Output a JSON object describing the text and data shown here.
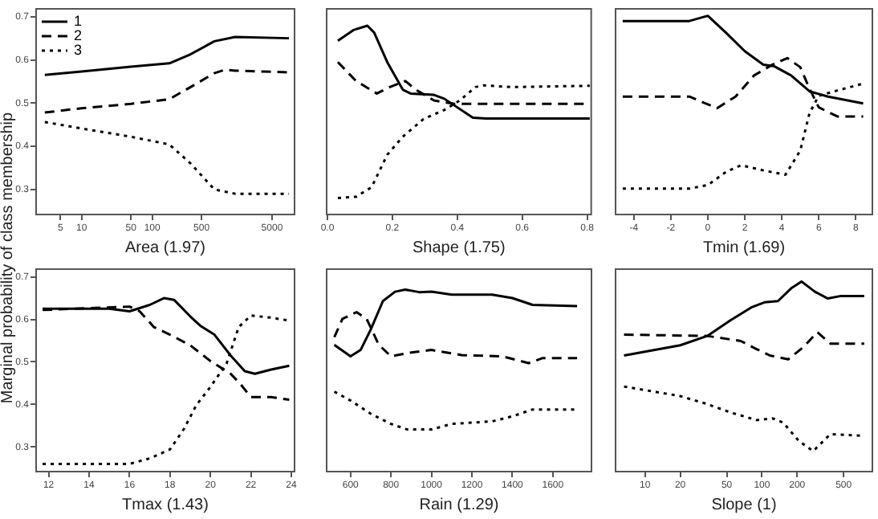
{
  "chart_data": [
    {
      "type": "line",
      "xlabel": "Area (1.97)",
      "ylabel": "Marginal probability of class membership",
      "log": "x",
      "xlim": [
        2.2,
        10700
      ],
      "xticks": [
        5,
        10,
        50,
        100,
        500,
        5000
      ],
      "ylim": [
        0.24,
        0.72
      ],
      "yticks": [
        0.3,
        0.4,
        0.5,
        0.6,
        0.7
      ],
      "legend": "top left",
      "marker": "none",
      "grid": false,
      "series": [
        {
          "name": "1",
          "color": "#000000",
          "line_style": "solid",
          "x": [
            3,
            10,
            50,
            175,
            350,
            760,
            1500,
            8700
          ],
          "values": [
            0.565,
            0.573,
            0.584,
            0.592,
            0.613,
            0.643,
            0.653,
            0.65
          ]
        },
        {
          "name": "2",
          "color": "#000000",
          "line_style": "dashed",
          "x": [
            3,
            10,
            50,
            175,
            350,
            760,
            1070,
            1500,
            8700
          ],
          "values": [
            0.478,
            0.488,
            0.498,
            0.509,
            0.537,
            0.569,
            0.577,
            0.575,
            0.571
          ]
        },
        {
          "name": "3",
          "color": "#000000",
          "line_style": "dotted",
          "x": [
            3,
            10,
            50,
            175,
            350,
            760,
            1500,
            8700
          ],
          "values": [
            0.456,
            0.441,
            0.422,
            0.404,
            0.36,
            0.3,
            0.29,
            0.29
          ]
        }
      ]
    },
    {
      "type": "line",
      "xlabel": "Shape (1.75)",
      "xlim": [
        -0.005,
        0.815
      ],
      "xticks": [
        {
          "value": 0,
          "label": "0.0"
        },
        0.2,
        0.4,
        0.6,
        0.8
      ],
      "ylim": [
        0.24,
        0.72
      ],
      "tick_labels": "x",
      "marker": "none",
      "grid": false,
      "series": [
        {
          "color": "#000000",
          "line_style": "solid",
          "x": [
            0.032,
            0.08,
            0.123,
            0.144,
            0.184,
            0.232,
            0.256,
            0.328,
            0.36,
            0.4,
            0.448,
            0.488,
            0.808
          ],
          "values": [
            0.644,
            0.669,
            0.679,
            0.663,
            0.595,
            0.531,
            0.522,
            0.519,
            0.51,
            0.49,
            0.466,
            0.464,
            0.464
          ]
        },
        {
          "color": "#000000",
          "line_style": "dashed",
          "x": [
            0.032,
            0.088,
            0.152,
            0.192,
            0.24,
            0.272,
            0.328,
            0.392,
            0.808
          ],
          "values": [
            0.595,
            0.551,
            0.522,
            0.537,
            0.551,
            0.531,
            0.506,
            0.498,
            0.498
          ]
        },
        {
          "color": "#000000",
          "line_style": "dotted",
          "x": [
            0.032,
            0.088,
            0.136,
            0.184,
            0.232,
            0.296,
            0.36,
            0.408,
            0.456,
            0.48,
            0.568,
            0.808
          ],
          "values": [
            0.28,
            0.283,
            0.305,
            0.38,
            0.422,
            0.463,
            0.484,
            0.506,
            0.537,
            0.541,
            0.537,
            0.54
          ]
        }
      ]
    },
    {
      "type": "line",
      "xlabel": "Tmin (1.69)",
      "xlim": [
        -5.03,
        8.94
      ],
      "xticks": [
        -4,
        -2,
        0,
        2,
        4,
        6,
        8
      ],
      "ylim": [
        0.24,
        0.72
      ],
      "tick_labels": "x",
      "marker": "none",
      "grid": false,
      "series": [
        {
          "color": "#000000",
          "line_style": "solid",
          "x": [
            -4.6,
            -1,
            0,
            1,
            2,
            3,
            3.6,
            4.5,
            5.5,
            6.5,
            8.4
          ],
          "values": [
            0.69,
            0.69,
            0.702,
            0.662,
            0.62,
            0.589,
            0.585,
            0.564,
            0.527,
            0.515,
            0.499
          ]
        },
        {
          "color": "#000000",
          "line_style": "dashed",
          "x": [
            -4.6,
            -1,
            0,
            0.5,
            1.5,
            2.5,
            3.5,
            4.3,
            5,
            5.5,
            6,
            7,
            8.4
          ],
          "values": [
            0.515,
            0.515,
            0.497,
            0.488,
            0.515,
            0.564,
            0.589,
            0.604,
            0.583,
            0.533,
            0.49,
            0.469,
            0.469
          ]
        },
        {
          "color": "#000000",
          "line_style": "dotted",
          "x": [
            -4.6,
            -1,
            0,
            1,
            1.8,
            3,
            4.2,
            5,
            5.5,
            6,
            7,
            8.4
          ],
          "values": [
            0.302,
            0.302,
            0.31,
            0.341,
            0.356,
            0.344,
            0.334,
            0.39,
            0.477,
            0.517,
            0.529,
            0.545
          ]
        }
      ]
    },
    {
      "type": "line",
      "xlabel": "Tmax (1.43)",
      "xlim": [
        11.34,
        24.2
      ],
      "xticks": [
        12,
        14,
        16,
        18,
        20,
        22,
        24
      ],
      "ylim": [
        0.24,
        0.72
      ],
      "yticks": [
        0.3,
        0.4,
        0.5,
        0.6,
        0.7
      ],
      "marker": "none",
      "grid": false,
      "series": [
        {
          "color": "#000000",
          "line_style": "solid",
          "x": [
            11.7,
            15,
            16,
            17,
            17.7,
            18.2,
            19,
            19.5,
            20.2,
            21,
            21.7,
            22.2,
            23,
            23.9
          ],
          "values": [
            0.625,
            0.625,
            0.619,
            0.634,
            0.65,
            0.646,
            0.607,
            0.585,
            0.564,
            0.515,
            0.478,
            0.472,
            0.482,
            0.491
          ]
        },
        {
          "color": "#000000",
          "line_style": "dashed",
          "x": [
            11.7,
            16,
            16.5,
            17.2,
            18,
            19,
            20,
            21,
            21.5,
            22,
            23,
            23.9
          ],
          "values": [
            0.622,
            0.63,
            0.619,
            0.582,
            0.564,
            0.539,
            0.502,
            0.472,
            0.447,
            0.417,
            0.417,
            0.411
          ]
        },
        {
          "color": "#000000",
          "line_style": "dotted",
          "x": [
            11.7,
            16,
            17,
            18,
            18.7,
            19.3,
            20,
            20.8,
            21.4,
            22,
            23,
            23.9
          ],
          "values": [
            0.26,
            0.26,
            0.273,
            0.294,
            0.343,
            0.398,
            0.441,
            0.496,
            0.582,
            0.609,
            0.604,
            0.597
          ]
        }
      ]
    },
    {
      "type": "line",
      "xlabel": "Rain (1.29)",
      "xlim": [
        478,
        1795
      ],
      "xticks": [
        600,
        800,
        1000,
        1200,
        1400,
        1600
      ],
      "ylim": [
        0.24,
        0.72
      ],
      "tick_labels": "x",
      "marker": "none",
      "grid": false,
      "series": [
        {
          "color": "#000000",
          "line_style": "solid",
          "x": [
            520,
            600,
            650,
            700,
            760,
            820,
            870,
            940,
            1000,
            1100,
            1300,
            1400,
            1500,
            1720
          ],
          "values": [
            0.54,
            0.513,
            0.528,
            0.576,
            0.643,
            0.665,
            0.67,
            0.664,
            0.665,
            0.658,
            0.658,
            0.65,
            0.634,
            0.631
          ]
        },
        {
          "color": "#000000",
          "line_style": "dashed",
          "x": [
            520,
            560,
            630,
            680,
            740,
            800,
            900,
            1000,
            1150,
            1350,
            1480,
            1550,
            1720
          ],
          "values": [
            0.558,
            0.601,
            0.617,
            0.601,
            0.54,
            0.513,
            0.522,
            0.528,
            0.516,
            0.513,
            0.497,
            0.509,
            0.509
          ]
        },
        {
          "color": "#000000",
          "line_style": "dotted",
          "x": [
            520,
            600,
            700,
            800,
            880,
            1000,
            1100,
            1300,
            1400,
            1500,
            1720
          ],
          "values": [
            0.43,
            0.409,
            0.378,
            0.354,
            0.341,
            0.341,
            0.354,
            0.36,
            0.372,
            0.388,
            0.388
          ]
        }
      ]
    },
    {
      "type": "line",
      "xlabel": "Slope (1)",
      "log": "x",
      "xlim": [
        5.5,
        895
      ],
      "xticks": [
        10,
        20,
        50,
        100,
        200,
        500
      ],
      "ylim": [
        0.24,
        0.72
      ],
      "tick_labels": "x",
      "marker": "none",
      "grid": false,
      "series": [
        {
          "color": "#000000",
          "line_style": "solid",
          "x": [
            6.6,
            20,
            34,
            54,
            81,
            105,
            137,
            178,
            218,
            284,
            366,
            474,
            750
          ],
          "values": [
            0.515,
            0.539,
            0.561,
            0.598,
            0.628,
            0.64,
            0.643,
            0.673,
            0.689,
            0.665,
            0.649,
            0.655,
            0.655
          ]
        },
        {
          "color": "#000000",
          "line_style": "dashed",
          "x": [
            6.6,
            34,
            66,
            90,
            117,
            168,
            229,
            297,
            385,
            750
          ],
          "values": [
            0.564,
            0.561,
            0.549,
            0.53,
            0.515,
            0.506,
            0.536,
            0.57,
            0.543,
            0.543
          ]
        },
        {
          "color": "#000000",
          "line_style": "dotted",
          "x": [
            6.6,
            19.6,
            32,
            54,
            90,
            124,
            152,
            207,
            274,
            385,
            750
          ],
          "values": [
            0.442,
            0.42,
            0.403,
            0.381,
            0.363,
            0.367,
            0.357,
            0.314,
            0.29,
            0.33,
            0.326
          ]
        }
      ]
    }
  ]
}
